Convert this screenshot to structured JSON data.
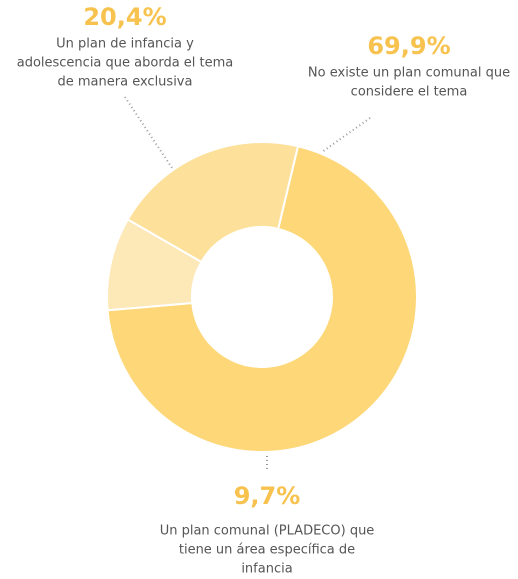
{
  "chart_data": {
    "type": "pie",
    "categories": [
      [
        "Un plan de infancia y",
        "adolescencia que aborda el tema",
        "de manera exclusiva"
      ],
      [
        "No existe un plan comunal que",
        "considere el tema"
      ],
      [
        "Un plan comunal (PLADECO) que",
        "tiene un área específica de",
        "infancia"
      ]
    ],
    "values": [
      20.4,
      69.9,
      9.7
    ],
    "value_labels": [
      "20,4%",
      "69,9%",
      "9,7%"
    ],
    "colors": [
      "#fde09a",
      "#fdd778",
      "#fde8b8"
    ]
  }
}
